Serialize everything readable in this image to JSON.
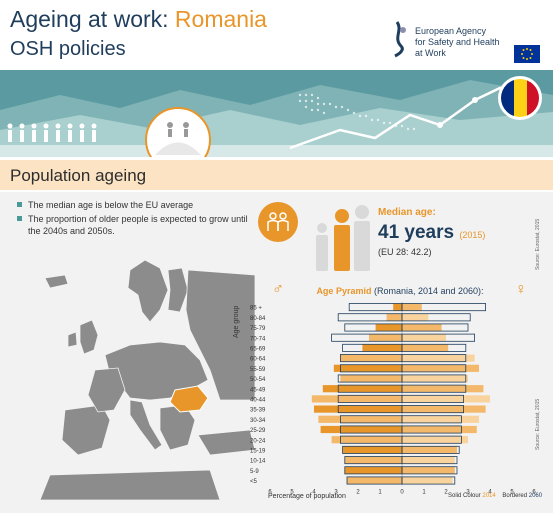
{
  "header": {
    "title_main": "Ageing at work:",
    "title_country": "Romania",
    "subtitle": "OSH policies",
    "agency_line1": "European Agency",
    "agency_line2": "for Safety and Health",
    "agency_line3": "at Work"
  },
  "section": {
    "title": "Population ageing"
  },
  "bullets": [
    "The median age is below the EU average",
    "The proportion of older people is expected to grow until the 2040s and 2050s."
  ],
  "median": {
    "label": "Median age:",
    "value": "41 years",
    "year": "(2015)",
    "eu": "(EU 28: 42.2)"
  },
  "source_text": "Source: Eurostat, 2015",
  "colors": {
    "accent": "#e8962a",
    "navy": "#1f3d5c",
    "teal": "#4a8a8c",
    "section_bg": "#fbe3c4"
  },
  "chart_data": {
    "type": "bar",
    "title": "Age Pyramid",
    "title_suffix": "(Romania, 2014 and 2060):",
    "ylabel": "Age group",
    "xlabel": "Percentage of population",
    "legend_solid": "Solid Colour",
    "legend_solid_year": "2014",
    "legend_bordered": "Bordered",
    "legend_bordered_year": "2060",
    "x_ticks": [
      "6",
      "5",
      "4",
      "3",
      "2",
      "1",
      "0",
      "1",
      "2",
      "3",
      "4",
      "5",
      "6"
    ],
    "xlim": [
      -6,
      6
    ],
    "categories": [
      "85 +",
      "80-84",
      "75-79",
      "70-74",
      "65-69",
      "60-64",
      "55-59",
      "50-54",
      "45-49",
      "40-44",
      "35-39",
      "30-34",
      "25-29",
      "20-24",
      "15-19",
      "10-14",
      "5-9",
      "<5"
    ],
    "series": [
      {
        "name": "Male 2014",
        "values": [
          0.4,
          0.7,
          1.2,
          1.5,
          1.8,
          2.8,
          3.1,
          2.8,
          3.6,
          4.1,
          4.0,
          3.8,
          3.7,
          3.2,
          2.7,
          2.6,
          2.6,
          2.5
        ]
      },
      {
        "name": "Female 2014",
        "values": [
          0.9,
          1.2,
          1.8,
          2.0,
          2.1,
          3.3,
          3.5,
          3.0,
          3.7,
          4.0,
          3.8,
          3.5,
          3.4,
          3.0,
          2.5,
          2.4,
          2.4,
          2.3
        ]
      },
      {
        "name": "Male 2060",
        "values": [
          2.4,
          2.9,
          2.6,
          3.2,
          2.7,
          2.8,
          2.8,
          2.9,
          2.9,
          2.9,
          2.9,
          2.8,
          2.8,
          2.8,
          2.7,
          2.6,
          2.6,
          2.5
        ]
      },
      {
        "name": "Female 2060",
        "values": [
          3.8,
          3.1,
          3.0,
          3.3,
          2.9,
          2.9,
          2.9,
          2.9,
          2.9,
          2.8,
          2.8,
          2.7,
          2.7,
          2.7,
          2.6,
          2.5,
          2.5,
          2.4
        ]
      }
    ]
  }
}
